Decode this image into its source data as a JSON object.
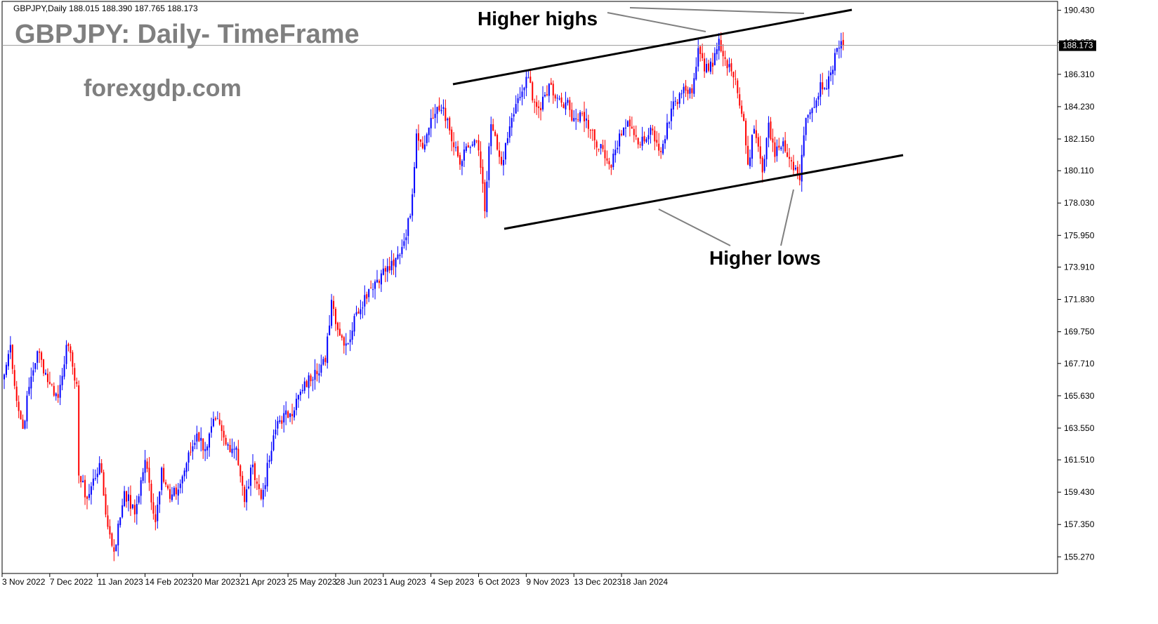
{
  "header": {
    "symbol_info": "GBPJPY,Daily  188.015 188.390 187.765 188.173",
    "title": "GBPJPY: Daily- TimeFrame",
    "website": "forexgdp.com"
  },
  "annotations": {
    "higher_highs": "Higher highs",
    "higher_lows": "Higher lows"
  },
  "current_price_label": "188.173",
  "colors": {
    "bull": "#0000ff",
    "bear": "#ff0000",
    "background": "#ffffff",
    "trendline": "#000000",
    "pointer": "#808080"
  },
  "chart_data": {
    "type": "candlestick",
    "symbol": "GBPJPY",
    "timeframe": "Daily",
    "ylim": [
      154.2,
      191.0
    ],
    "grid": false,
    "y_ticks": [
      "190.430",
      "188.350",
      "186.310",
      "184.230",
      "182.150",
      "180.110",
      "178.030",
      "175.950",
      "173.910",
      "171.830",
      "169.750",
      "167.710",
      "165.630",
      "163.550",
      "161.510",
      "159.430",
      "157.350",
      "155.270"
    ],
    "x_ticks": [
      "3 Nov 2022",
      "7 Dec 2022",
      "11 Jan 2023",
      "14 Feb 2023",
      "20 Mar 2023",
      "21 Apr 2023",
      "25 May 2023",
      "28 Jun 2023",
      "1 Aug 2023",
      "4 Sep 2023",
      "6 Oct 2023",
      "9 Nov 2023",
      "13 Dec 2023",
      "18 Jan 2024"
    ],
    "last_close": 188.173,
    "anchors": [
      [
        0,
        167.0
      ],
      [
        3,
        168.9
      ],
      [
        6,
        165.3
      ],
      [
        9,
        163.5
      ],
      [
        12,
        166.2
      ],
      [
        16,
        168.5
      ],
      [
        22,
        166.4
      ],
      [
        26,
        165.5
      ],
      [
        30,
        168.9
      ],
      [
        33,
        167.5
      ],
      [
        35,
        166.4
      ],
      [
        36,
        160.5
      ],
      [
        40,
        159.0
      ],
      [
        46,
        161.3
      ],
      [
        50,
        157.2
      ],
      [
        53,
        155.6
      ],
      [
        58,
        159.5
      ],
      [
        63,
        158.0
      ],
      [
        68,
        161.5
      ],
      [
        73,
        157.5
      ],
      [
        76,
        161.0
      ],
      [
        80,
        159.0
      ],
      [
        84,
        159.6
      ],
      [
        88,
        161.3
      ],
      [
        93,
        163.2
      ],
      [
        97,
        162.2
      ],
      [
        102,
        164.1
      ],
      [
        107,
        162.5
      ],
      [
        112,
        162.3
      ],
      [
        116,
        158.8
      ],
      [
        120,
        161.2
      ],
      [
        124,
        159.0
      ],
      [
        128,
        161.5
      ],
      [
        132,
        164.0
      ],
      [
        138,
        164.5
      ],
      [
        144,
        166.0
      ],
      [
        150,
        167.3
      ],
      [
        155,
        167.8
      ],
      [
        158,
        171.8
      ],
      [
        162,
        169.5
      ],
      [
        166,
        169.0
      ],
      [
        170,
        171.0
      ],
      [
        176,
        172.5
      ],
      [
        182,
        173.5
      ],
      [
        188,
        174.0
      ],
      [
        192,
        175.2
      ],
      [
        196,
        177.2
      ],
      [
        199,
        182.5
      ],
      [
        203,
        181.8
      ],
      [
        206,
        183.5
      ],
      [
        212,
        184.2
      ],
      [
        216,
        182.0
      ],
      [
        220,
        180.5
      ],
      [
        224,
        181.6
      ],
      [
        228,
        182.0
      ],
      [
        230,
        180.3
      ],
      [
        232,
        177.5
      ],
      [
        235,
        183.1
      ],
      [
        239,
        181.0
      ],
      [
        241,
        180.8
      ],
      [
        245,
        183.5
      ],
      [
        250,
        185.2
      ],
      [
        253,
        186.1
      ],
      [
        256,
        184.5
      ],
      [
        259,
        184.0
      ],
      [
        263,
        185.7
      ],
      [
        267,
        184.8
      ],
      [
        271,
        184.5
      ],
      [
        275,
        183.5
      ],
      [
        279,
        183.8
      ],
      [
        283,
        182.7
      ],
      [
        286,
        181.6
      ],
      [
        289,
        181.5
      ],
      [
        293,
        180.3
      ],
      [
        297,
        182.5
      ],
      [
        301,
        183.3
      ],
      [
        305,
        182.3
      ],
      [
        309,
        182.0
      ],
      [
        313,
        182.7
      ],
      [
        317,
        181.3
      ],
      [
        320,
        183.2
      ],
      [
        324,
        184.6
      ],
      [
        328,
        185.5
      ],
      [
        332,
        185.1
      ],
      [
        335,
        188.0
      ],
      [
        338,
        186.5
      ],
      [
        342,
        186.8
      ],
      [
        345,
        188.6
      ],
      [
        348,
        187.3
      ],
      [
        351,
        186.5
      ],
      [
        354,
        185.1
      ],
      [
        357,
        183.3
      ],
      [
        359,
        180.5
      ],
      [
        362,
        182.8
      ],
      [
        366,
        180.0
      ],
      [
        369,
        183.2
      ],
      [
        372,
        181.0
      ],
      [
        376,
        182.0
      ],
      [
        378,
        181.0
      ],
      [
        382,
        180.3
      ],
      [
        384,
        179.5
      ],
      [
        387,
        183.5
      ],
      [
        391,
        184.2
      ],
      [
        394,
        185.8
      ],
      [
        397,
        185.4
      ],
      [
        400,
        186.6
      ],
      [
        402,
        188.0
      ],
      [
        405,
        188.173
      ]
    ]
  }
}
